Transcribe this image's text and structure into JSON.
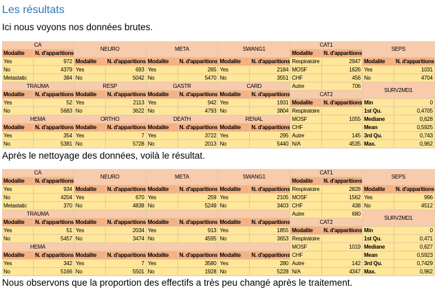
{
  "heading": "Les résultats",
  "paragraphs": [
    "Ici nous voyons nos données brutes.",
    "Après le nettoyage des données, voilà le résultat.",
    "Nous observons que la proportion des effectifs a très peu changé après le traitement."
  ],
  "tables": [
    {
      "rows": [
        [
          "CA",
          null,
          "NEURO",
          null,
          "META",
          null,
          "SWANG1",
          null,
          "CAT1",
          null,
          "SEPS",
          null
        ],
        [
          "Modalite",
          "N. d'apparitions",
          null,
          null,
          null,
          null,
          null,
          null,
          "Modalite",
          "N. d'apparitions",
          null,
          null
        ],
        [
          "Yes",
          "972",
          "Modalite",
          "N. d'apparitions",
          "Modalite",
          "N. d'apparitions",
          "Modalite",
          "N. d'apparitions",
          "Respiratoire",
          "2947",
          "Modalite",
          "N. d'apparitions"
        ],
        [
          "No",
          "4379",
          "Yes",
          "693",
          "Yes",
          "265",
          "Yes",
          "2184",
          "MOSF",
          "1626",
          "Yes",
          "1031"
        ],
        [
          "Metastatic",
          "384",
          "No",
          "5042",
          "No",
          "5470",
          "No",
          "3551",
          "CHF",
          "456",
          "No",
          "4704"
        ],
        [
          "TRAUMA",
          null,
          "RESP",
          null,
          "GASTR",
          null,
          "CARD",
          null,
          "Autre",
          "706",
          "SURV2MD1",
          null
        ],
        [
          "Modalite",
          "N. d'apparitions",
          "Modalite",
          "N. d'apparitions",
          "Modalite",
          "N. d'apparitions",
          "Modalite",
          "N. d'apparitions",
          "CAT2",
          null,
          null,
          null
        ],
        [
          "Yes",
          "52",
          "Yes",
          "2113",
          "Yes",
          "942",
          "Yes",
          "1931",
          "Modalite",
          "N. d'apparitions",
          "Min",
          "0"
        ],
        [
          "No",
          "5683",
          "No",
          "3622",
          "No",
          "4793",
          "No",
          "3804",
          "Respiratoire",
          null,
          "1st Qu.",
          "0,4705"
        ],
        [
          "HEMA",
          null,
          "ORTHO",
          null,
          "DEATH",
          null,
          "RENAL",
          null,
          "MOSF",
          "1055",
          "Mediane",
          "0,628"
        ],
        [
          "Modalite",
          "N. d'apparitions",
          "Modalite",
          "N. d'apparitions",
          "Modalite",
          "N. d'apparitions",
          "Modalite",
          "N. d'apparitions",
          "CHF",
          null,
          "Mean",
          "0,5925"
        ],
        [
          "Yes",
          "354",
          "Yes",
          "7",
          "Yes",
          "3722",
          "Yes",
          "295",
          "Autre",
          "145",
          "3rd Qu.",
          "0,743"
        ],
        [
          "No",
          "5381",
          "No",
          "5728",
          "No",
          "2013",
          "No",
          "5440",
          "N/A",
          "4535",
          "Max.",
          "0,962"
        ]
      ]
    },
    {
      "rows": [
        [
          "CA",
          null,
          "NEURO",
          null,
          "META",
          null,
          "SWANG1",
          null,
          "CAT1",
          null,
          "SEPS",
          null
        ],
        [
          "Modalite",
          "N. d'apparitions",
          null,
          null,
          null,
          null,
          null,
          null,
          "Modalite",
          "N. d'apparitions",
          null,
          null
        ],
        [
          "Yes",
          "934",
          "Modalite",
          "N. d'apparitions",
          "Modalite",
          "N. d'apparitions",
          "Modalite",
          "N. d'apparitions",
          "Respiratoire",
          "2828",
          "Modalite",
          "N. d'apparitions"
        ],
        [
          "No",
          "4204",
          "Yes",
          "670",
          "Yes",
          "259",
          "Yes",
          "2105",
          "MOSF",
          "1562",
          "Yes",
          "996"
        ],
        [
          "Metastatic",
          "370",
          "No",
          "4838",
          "No",
          "5249",
          "No",
          "3403",
          "CHF",
          "438",
          "No",
          "4512"
        ],
        [
          "TRAUMA",
          null,
          null,
          null,
          null,
          null,
          null,
          null,
          "Autre",
          "680",
          "SURV2MD1",
          null
        ],
        [
          "Modalite",
          "N. d'apparitions",
          "Modalite",
          "N. d'apparitions",
          "Modalite",
          "N. d'apparitions",
          "Modalite",
          "N. d'apparitions",
          "CAT2",
          null,
          null,
          null
        ],
        [
          "Yes",
          "51",
          "Yes",
          "2034",
          "Yes",
          "913",
          "Yes",
          "1855",
          "Modalite",
          "N. d'apparitions",
          "Min",
          "0"
        ],
        [
          "No",
          "5457",
          "No",
          "3474",
          "No",
          "4595",
          "No",
          "3653",
          "Respiratoire",
          null,
          "1st Qu.",
          "0,471"
        ],
        [
          "HEMA",
          null,
          null,
          null,
          null,
          null,
          null,
          null,
          "MOSF",
          "1019",
          "Mediane",
          "0,627"
        ],
        [
          "Modalite",
          "N. d'apparitions",
          "Modalite",
          "N. d'apparitions",
          "Modalite",
          "N. d'apparitions",
          "Modalite",
          "N. d'apparitions",
          "CHF",
          null,
          "Mean",
          "0,5923"
        ],
        [
          "Yes",
          "342",
          "Yes",
          "7",
          "Yes",
          "3580",
          "Yes",
          "280",
          "Autre",
          "142",
          "3rd Qu.",
          "0,7429"
        ],
        [
          "No",
          "5166",
          "No",
          "5501",
          "No",
          "1928",
          "No",
          "5228",
          "N/A",
          "4347",
          "Max.",
          "0,962"
        ]
      ]
    }
  ]
}
